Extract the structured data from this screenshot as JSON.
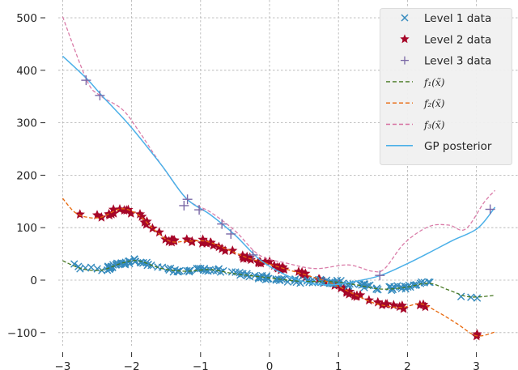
{
  "chart_data": {
    "type": "line",
    "title": "",
    "xlabel": "",
    "ylabel": "",
    "xlim": [
      -3.05,
      3.35
    ],
    "ylim": [
      -125,
      520
    ],
    "grid": true,
    "legend_position": "upper right",
    "x_ticks": [
      -3,
      -2,
      -1,
      0,
      1,
      2,
      3
    ],
    "x_tick_labels": [
      "−3",
      "−2",
      "−1",
      "0",
      "1",
      "2",
      "3"
    ],
    "y_ticks": [
      -100,
      0,
      100,
      200,
      300,
      400,
      500
    ],
    "y_tick_labels": [
      "−100",
      "0",
      "100",
      "200",
      "300",
      "400",
      "500"
    ],
    "legend": [
      {
        "label": "Level 1 data",
        "kind": "marker",
        "marker": "x",
        "color": "#348ABD"
      },
      {
        "label": "Level 2 data",
        "kind": "marker",
        "marker": "star",
        "color": "#A60628"
      },
      {
        "label": "Level 3 data",
        "kind": "marker",
        "marker": "plus",
        "color": "#7A68A6"
      },
      {
        "label": "f₁(x̃)",
        "kind": "dashed",
        "color": "#467821"
      },
      {
        "label": "f₂(x̃)",
        "kind": "dashed",
        "color": "#E8680C"
      },
      {
        "label": "f₃(x̃)",
        "kind": "dashed",
        "color": "#CF4457"
      },
      {
        "label": "GP posterior",
        "kind": "solid",
        "color": "#4BB0E8"
      }
    ],
    "series": [
      {
        "name": "f1(x~)",
        "style": "dashed",
        "color": "#467821",
        "x": [
          -3.0,
          -2.73,
          -2.44,
          -2.15,
          -1.91,
          -1.56,
          -1.21,
          -0.86,
          -0.5,
          -0.04,
          0.43,
          0.9,
          1.26,
          1.61,
          1.96,
          2.31,
          2.6,
          2.9,
          3.27
        ],
        "y": [
          37,
          22,
          19,
          32,
          37,
          22,
          17,
          20,
          12,
          5,
          -2,
          -3,
          -9,
          -17,
          -14,
          -6,
          -19,
          -32,
          -29
        ]
      },
      {
        "name": "f2(x~)",
        "style": "dashed",
        "color": "#E8680C",
        "x": [
          -3.0,
          -2.83,
          -2.65,
          -2.44,
          -2.15,
          -1.91,
          -1.68,
          -1.44,
          -1.21,
          -0.92,
          -0.62,
          -0.33,
          -0.04,
          0.26,
          0.55,
          0.9,
          1.26,
          1.55,
          1.9,
          2.19,
          2.43,
          2.72,
          3.0,
          3.27
        ],
        "y": [
          156,
          130,
          120,
          120,
          136,
          125,
          97,
          74,
          74,
          74,
          59,
          43,
          32,
          20,
          9,
          -6,
          -29,
          -45,
          -52,
          -45,
          -60,
          -83,
          -106,
          -99
        ]
      },
      {
        "name": "f3(x~)",
        "style": "dashed",
        "color": "#CF4457",
        "x": [
          -3.0,
          -2.65,
          -2.46,
          -2.14,
          -1.91,
          -1.56,
          -1.19,
          -0.86,
          -0.5,
          -0.15,
          0.26,
          0.67,
          1.14,
          1.49,
          1.67,
          1.96,
          2.31,
          2.6,
          2.84,
          3.11,
          3.27
        ],
        "y": [
          502,
          381,
          352,
          326,
          287,
          218,
          154,
          130,
          94,
          48,
          32,
          22,
          29,
          17,
          22,
          71,
          102,
          105,
          97,
          148,
          171
        ]
      },
      {
        "name": "GP posterior",
        "style": "solid",
        "color": "#4BB0E8",
        "x": [
          -3.0,
          -2.65,
          -2.44,
          -2.03,
          -1.56,
          -1.21,
          -0.86,
          -0.5,
          -0.15,
          0.2,
          0.55,
          0.9,
          1.26,
          1.61,
          1.96,
          2.31,
          2.66,
          3.02,
          3.27
        ],
        "y": [
          427,
          384,
          353,
          295,
          218,
          156,
          125,
          86,
          40,
          12,
          -5,
          -9,
          -2,
          9,
          29,
          52,
          76,
          99,
          139
        ]
      },
      {
        "name": "Level 1 data",
        "style": "markers",
        "marker": "x",
        "color": "#348ABD",
        "x_range": [
          -2.85,
          3.25
        ],
        "n_points_approx": 200,
        "follows": "f1(x~)"
      },
      {
        "name": "Level 2 data",
        "style": "markers",
        "marker": "star",
        "color": "#A60628",
        "x_range": [
          -2.8,
          3.2
        ],
        "n_points_approx": 120,
        "follows": "f2(x~)"
      },
      {
        "name": "Level 3 data",
        "style": "markers",
        "marker": "plus",
        "color": "#7A68A6",
        "x": [
          -2.66,
          -2.46,
          -1.19,
          -1.24,
          -1.02,
          -0.69,
          -0.56,
          -0.24,
          1.6,
          3.2
        ],
        "y": [
          381,
          352,
          154,
          142,
          134,
          107,
          88,
          48,
          9,
          135
        ]
      }
    ]
  }
}
